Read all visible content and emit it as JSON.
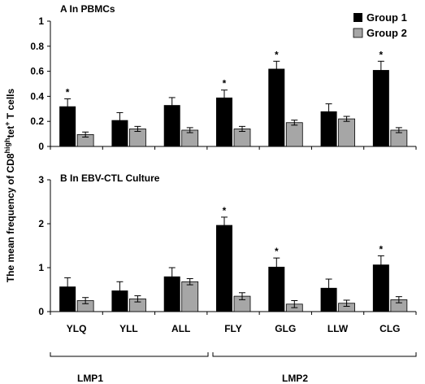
{
  "chart_data": {
    "type": "bar",
    "ylabel": {
      "prefix": "The mean frequency of CD8",
      "sup1": "high",
      "mid": "tet",
      "sup2": "+",
      "suffix": " T cells"
    },
    "categories": [
      "YLQ",
      "YLL",
      "ALL",
      "FLY",
      "GLG",
      "LLW",
      "CLG"
    ],
    "groups": [
      {
        "label": "LMP1",
        "categories": [
          "YLQ",
          "YLL",
          "ALL"
        ]
      },
      {
        "label": "LMP2",
        "categories": [
          "FLY",
          "GLG",
          "LLW",
          "CLG"
        ]
      }
    ],
    "legend": {
      "position": "top-right",
      "entries": [
        {
          "name": "Group 1",
          "color": "#000000"
        },
        {
          "name": "Group 2",
          "color": "#a6a6a6"
        }
      ]
    },
    "panels": [
      {
        "title": "A  In PBMCs",
        "ylim": [
          0,
          1
        ],
        "yticks": [
          "0",
          "0.2",
          "0.4",
          "0.6",
          "0.8",
          "1"
        ],
        "series": [
          {
            "name": "Group 1",
            "values": [
              0.32,
              0.21,
              0.33,
              0.39,
              0.62,
              0.28,
              0.61
            ],
            "errors": [
              0.06,
              0.06,
              0.06,
              0.06,
              0.06,
              0.06,
              0.07
            ]
          },
          {
            "name": "Group 2",
            "values": [
              0.095,
              0.14,
              0.13,
              0.14,
              0.19,
              0.22,
              0.13
            ],
            "errors": [
              0.02,
              0.02,
              0.02,
              0.02,
              0.02,
              0.02,
              0.02
            ]
          }
        ],
        "significance": [
          "*",
          "",
          "",
          "*",
          "*",
          "",
          "*"
        ]
      },
      {
        "title": "B  In EBV-CTL Culture",
        "ylim": [
          0,
          3
        ],
        "yticks": [
          "0",
          "1",
          "2",
          "3"
        ],
        "series": [
          {
            "name": "Group 1",
            "values": [
              0.57,
              0.48,
              0.8,
              1.97,
              1.02,
              0.54,
              1.07
            ],
            "errors": [
              0.2,
              0.2,
              0.2,
              0.18,
              0.2,
              0.2,
              0.2
            ]
          },
          {
            "name": "Group 2",
            "values": [
              0.25,
              0.29,
              0.68,
              0.35,
              0.17,
              0.19,
              0.27
            ],
            "errors": [
              0.07,
              0.07,
              0.07,
              0.08,
              0.08,
              0.07,
              0.07
            ]
          }
        ],
        "significance": [
          "",
          "",
          "",
          "*",
          "*",
          "",
          "*"
        ]
      }
    ]
  }
}
